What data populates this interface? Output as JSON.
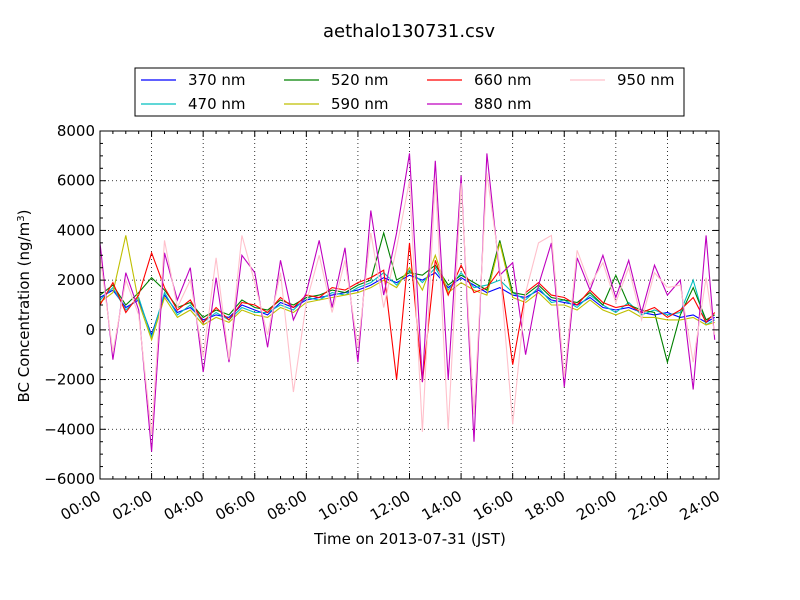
{
  "chart_data": {
    "type": "line",
    "title": "aethalo130731.csv",
    "xlabel": "Time on 2013-07-31 (JST)",
    "ylabel": "BC Concentration (ng/m³)",
    "ylabel_parts": {
      "prefix": "BC Concentration (ng/m",
      "sup": "3",
      "suffix": ")"
    },
    "xlim": [
      "00:00",
      "24:00"
    ],
    "ylim": [
      -6000,
      8000
    ],
    "grid": true,
    "legend_position": "top",
    "x_tick_labels": [
      "00:00",
      "02:00",
      "04:00",
      "06:00",
      "08:00",
      "10:00",
      "12:00",
      "14:00",
      "16:00",
      "18:00",
      "20:00",
      "22:00",
      "24:00"
    ],
    "y_ticks": [
      -6000,
      -4000,
      -2000,
      0,
      2000,
      4000,
      6000,
      8000
    ],
    "y_tick_labels": [
      "−6000",
      "−4000",
      "−2000",
      "0",
      "2000",
      "4000",
      "6000",
      "8000"
    ],
    "x": [
      "00:00",
      "00:30",
      "01:00",
      "01:30",
      "02:00",
      "02:30",
      "03:00",
      "03:30",
      "04:00",
      "04:30",
      "05:00",
      "05:30",
      "06:00",
      "06:30",
      "07:00",
      "07:30",
      "08:00",
      "08:30",
      "09:00",
      "09:30",
      "10:00",
      "10:30",
      "11:00",
      "11:30",
      "12:00",
      "12:30",
      "13:00",
      "13:30",
      "14:00",
      "14:30",
      "15:00",
      "15:30",
      "16:00",
      "16:30",
      "17:00",
      "17:30",
      "18:00",
      "18:30",
      "19:00",
      "19:30",
      "20:00",
      "20:30",
      "21:00",
      "21:30",
      "22:00",
      "22:30",
      "23:00",
      "23:30",
      "23:50"
    ],
    "series": [
      {
        "name": "370 nm",
        "color": "#0000ff",
        "values": [
          1300,
          1600,
          900,
          1200,
          -200,
          1400,
          700,
          900,
          400,
          600,
          500,
          1000,
          800,
          600,
          1100,
          900,
          1200,
          1300,
          1400,
          1500,
          1600,
          1800,
          2100,
          1900,
          2200,
          2000,
          2300,
          1700,
          2100,
          1800,
          1500,
          1700,
          1400,
          1300,
          1600,
          1200,
          1100,
          1000,
          1300,
          900,
          800,
          900,
          700,
          600,
          700,
          500,
          600,
          300,
          500
        ]
      },
      {
        "name": "470 nm",
        "color": "#00bfbf",
        "values": [
          1200,
          1700,
          800,
          1300,
          -300,
          1500,
          600,
          1000,
          300,
          700,
          400,
          900,
          700,
          700,
          1000,
          800,
          1300,
          1200,
          1500,
          1400,
          1700,
          1900,
          2300,
          1800,
          2400,
          1900,
          2500,
          1600,
          2300,
          1700,
          1800,
          2000,
          1500,
          1200,
          1700,
          1100,
          1200,
          900,
          1400,
          1000,
          700,
          1100,
          600,
          800,
          600,
          700,
          2000,
          200,
          400
        ]
      },
      {
        "name": "520 nm",
        "color": "#008000",
        "values": [
          1400,
          1800,
          1000,
          1500,
          2100,
          1600,
          900,
          1100,
          500,
          800,
          600,
          1200,
          900,
          800,
          1200,
          1000,
          1300,
          1400,
          1600,
          1500,
          1800,
          2000,
          3900,
          2000,
          2300,
          2200,
          2600,
          1800,
          2200,
          1900,
          1600,
          3600,
          1500,
          1400,
          1800,
          1300,
          1200,
          1100,
          1500,
          1000,
          2200,
          1000,
          800,
          700,
          -1300,
          600,
          1700,
          400,
          600
        ]
      },
      {
        "name": "590 nm",
        "color": "#bfbf00",
        "values": [
          1100,
          1500,
          3800,
          1100,
          -400,
          1300,
          500,
          800,
          200,
          500,
          300,
          800,
          600,
          500,
          900,
          700,
          1100,
          1200,
          1300,
          1400,
          1500,
          1700,
          2000,
          1700,
          2500,
          1600,
          3000,
          1500,
          1900,
          1600,
          1400,
          3500,
          1300,
          1100,
          1500,
          1000,
          1000,
          800,
          1200,
          800,
          600,
          800,
          500,
          500,
          400,
          400,
          500,
          200,
          300
        ]
      },
      {
        "name": "660 nm",
        "color": "#ff0000",
        "values": [
          1000,
          1900,
          700,
          1400,
          3100,
          1700,
          800,
          1200,
          300,
          900,
          400,
          1100,
          1000,
          700,
          1300,
          900,
          1400,
          1300,
          1700,
          1600,
          1900,
          2100,
          2400,
          -2000,
          3500,
          -2100,
          2800,
          1400,
          2600,
          1500,
          1700,
          2400,
          -1400,
          1500,
          1900,
          1400,
          1300,
          1000,
          1600,
          1100,
          900,
          1000,
          700,
          900,
          500,
          800,
          1300,
          300,
          700
        ]
      },
      {
        "name": "880 nm",
        "color": "#bf00bf",
        "values": [
          3500,
          -1200,
          2300,
          800,
          -4900,
          3100,
          1200,
          2500,
          -1700,
          2100,
          -1300,
          3000,
          2300,
          -700,
          2800,
          400,
          1500,
          3600,
          900,
          3300,
          -1300,
          4800,
          1400,
          3900,
          7100,
          -2100,
          6800,
          -2000,
          6200,
          -4500,
          7100,
          2200,
          2700,
          -1000,
          1800,
          3500,
          -2300,
          2900,
          1600,
          3000,
          1300,
          2800,
          700,
          2600,
          1400,
          2000,
          -2400,
          3800,
          -400
        ]
      },
      {
        "name": "950 nm",
        "color": "#ffc0cb",
        "values": [
          3000,
          -900,
          2000,
          600,
          -4200,
          3600,
          900,
          2000,
          -1100,
          2900,
          -1200,
          3800,
          1900,
          -200,
          2300,
          -2500,
          1100,
          3000,
          700,
          2800,
          -700,
          3900,
          900,
          3300,
          6000,
          -4100,
          6100,
          -4000,
          5900,
          -3400,
          6300,
          2500,
          -3800,
          1500,
          3500,
          3800,
          -1900,
          3200,
          1800,
          2700,
          1100,
          2500,
          400,
          2300,
          1700,
          1800,
          -1300,
          2100,
          -200
        ]
      }
    ]
  }
}
